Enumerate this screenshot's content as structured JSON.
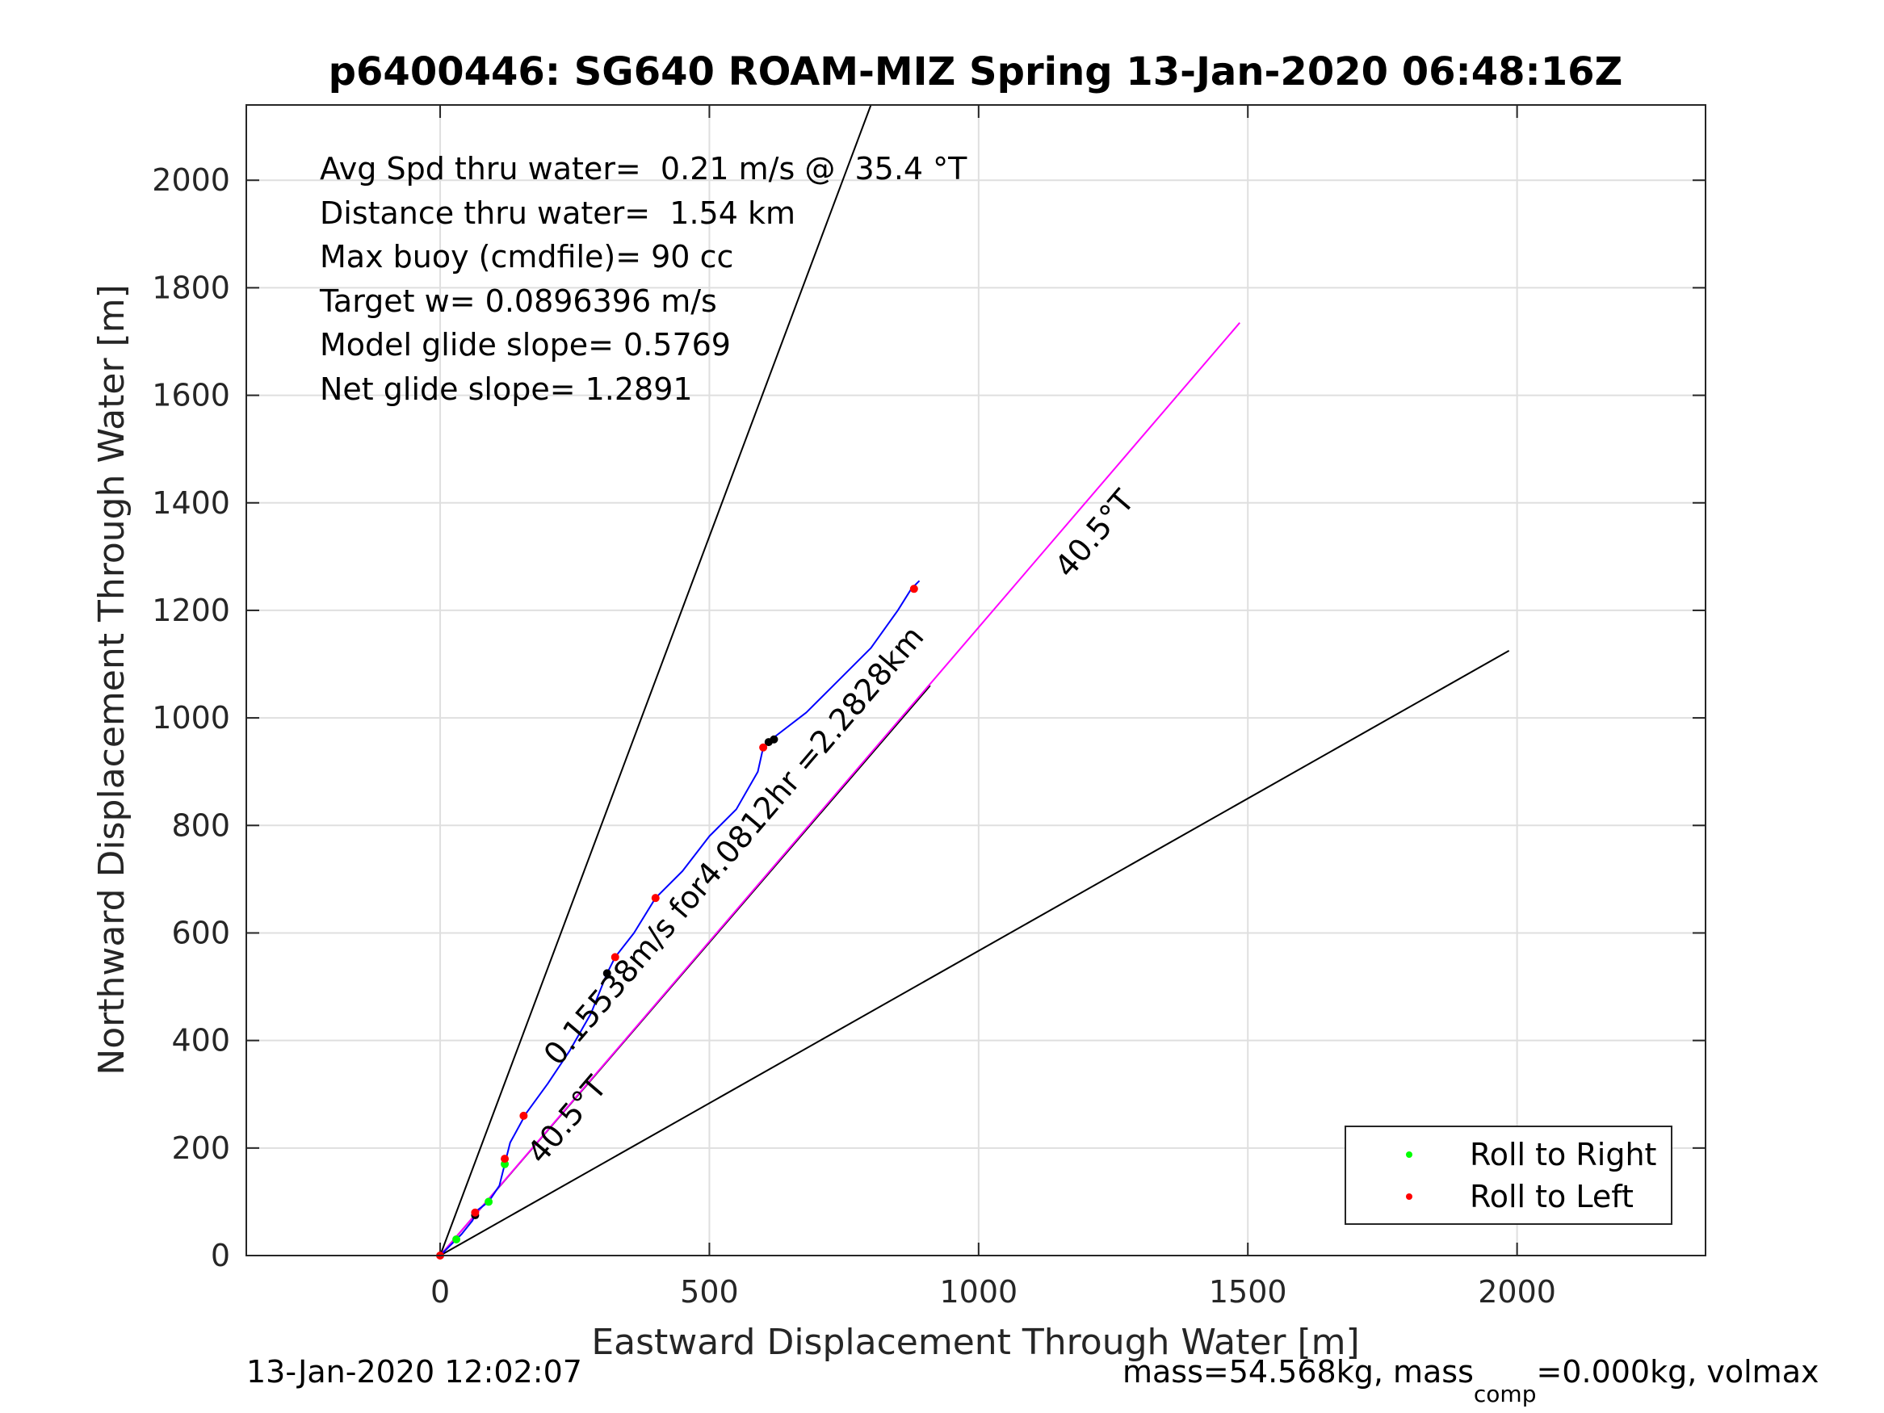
{
  "chart_data": {
    "type": "line",
    "title": "p6400446: SG640 ROAM-MIZ Spring 13-Jan-2020 06:48:16Z",
    "xlabel": "Eastward Displacement Through Water [m]",
    "ylabel": "Northward Displacement Through Water [m]",
    "xlim": [
      -360,
      2350
    ],
    "ylim": [
      0,
      2140
    ],
    "xticks": [
      0,
      500,
      1000,
      1500,
      2000
    ],
    "yticks": [
      0,
      200,
      400,
      600,
      800,
      1000,
      1200,
      1400,
      1600,
      1800,
      2000
    ],
    "grid": true,
    "annotations": [
      "Avg Spd thru water=  0.21 m/s @  35.4 °T",
      "Distance thru water=  1.54 km",
      "Max buoy (cmdfile)= 90 cc",
      "Target w= 0.0896396 m/s",
      "Model glide slope= 0.5769",
      "Net glide slope= 1.2891"
    ],
    "line_labels": [
      {
        "text": "40.5°T",
        "x": 1230,
        "y": 1330,
        "angle_deg": 49.5
      },
      {
        "text": "40.5°T",
        "x": 250,
        "y": 240,
        "angle_deg": 49.5
      },
      {
        "text": "0.15538m/s for4.0812hr =2.2828km",
        "x": 560,
        "y": 750,
        "angle_deg": 49.5
      }
    ],
    "reference_lines": [
      {
        "name": "upper",
        "color": "#000000",
        "points": [
          [
            0,
            0
          ],
          [
            800,
            2140
          ]
        ]
      },
      {
        "name": "lower",
        "color": "#000000",
        "points": [
          [
            0,
            0
          ],
          [
            1985,
            1125
          ]
        ]
      },
      {
        "name": "middle",
        "color": "#000000",
        "points": [
          [
            0,
            0
          ],
          [
            910,
            1060
          ]
        ]
      },
      {
        "name": "heading",
        "color": "#ff00ff",
        "points": [
          [
            0,
            0
          ],
          [
            1485,
            1735
          ]
        ]
      }
    ],
    "series": [
      {
        "name": "",
        "color": "#0000ff",
        "points": [
          [
            0,
            0
          ],
          [
            20,
            20
          ],
          [
            40,
            40
          ],
          [
            60,
            65
          ],
          [
            70,
            85
          ],
          [
            90,
            100
          ],
          [
            110,
            130
          ],
          [
            120,
            170
          ],
          [
            130,
            210
          ],
          [
            160,
            265
          ],
          [
            200,
            320
          ],
          [
            240,
            380
          ],
          [
            280,
            450
          ],
          [
            310,
            525
          ],
          [
            325,
            555
          ],
          [
            360,
            600
          ],
          [
            400,
            665
          ],
          [
            450,
            715
          ],
          [
            500,
            780
          ],
          [
            550,
            830
          ],
          [
            590,
            900
          ],
          [
            600,
            945
          ],
          [
            615,
            960
          ],
          [
            680,
            1010
          ],
          [
            730,
            1060
          ],
          [
            800,
            1130
          ],
          [
            850,
            1200
          ],
          [
            875,
            1240
          ],
          [
            890,
            1255
          ]
        ]
      }
    ],
    "markers": {
      "roll_right_color": "#00ff00",
      "roll_left_color": "#ff0000",
      "other_color": "#000000",
      "right": [
        [
          90,
          100
        ],
        [
          30,
          30
        ],
        [
          120,
          170
        ]
      ],
      "left": [
        [
          0,
          0
        ],
        [
          65,
          80
        ],
        [
          120,
          180
        ],
        [
          155,
          260
        ],
        [
          325,
          555
        ],
        [
          400,
          665
        ],
        [
          600,
          945
        ],
        [
          880,
          1240
        ]
      ],
      "other": [
        [
          310,
          525
        ],
        [
          610,
          955
        ],
        [
          620,
          960
        ],
        [
          65,
          75
        ]
      ]
    },
    "legend": {
      "position": "bottom-right",
      "entries": [
        {
          "label": "Roll to Right",
          "color": "#00ff00"
        },
        {
          "label": "Roll to Left",
          "color": "#ff0000"
        }
      ]
    }
  },
  "footer": {
    "left": "13-Jan-2020 12:02:07",
    "right_main": "mass=54.568kg, mass",
    "right_sub": "comp",
    "right_tail": "=0.000kg, volmax"
  }
}
